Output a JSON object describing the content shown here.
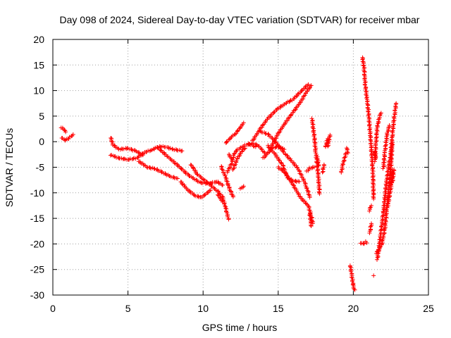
{
  "chart_data": {
    "type": "scatter",
    "title": "Day 098 of 2024, Sidereal Day-to-day VTEC variation (SDTVAR) for receiver mbar",
    "xlabel": "GPS time / hours",
    "ylabel": "SDTVAR / TECUs",
    "xlim": [
      0,
      25
    ],
    "ylim": [
      -30,
      20
    ],
    "xticks": [
      0,
      5,
      10,
      15,
      20,
      25
    ],
    "yticks": [
      -30,
      -25,
      -20,
      -15,
      -10,
      -5,
      0,
      5,
      10,
      15,
      20
    ],
    "xtick_labels": [
      "0",
      "5",
      "10",
      "15",
      "20",
      "25"
    ],
    "ytick_labels": [
      "-30",
      "-25",
      "-20",
      "-15",
      "-10",
      "-5",
      "0",
      "5",
      "10",
      "15",
      "20"
    ],
    "grid": true,
    "marker": "plus",
    "color": "#ff0000",
    "series": [
      {
        "points": [
          [
            0.55,
            2.8
          ],
          [
            0.7,
            2.5
          ],
          [
            0.85,
            1.9
          ]
        ]
      },
      {
        "points": [
          [
            0.6,
            0.8
          ],
          [
            0.8,
            0.3
          ],
          [
            1.0,
            0.5
          ],
          [
            1.2,
            1.0
          ],
          [
            1.35,
            1.4
          ]
        ]
      },
      {
        "points": [
          [
            3.85,
            0.8
          ],
          [
            4.0,
            -0.6
          ],
          [
            4.4,
            -1.5
          ],
          [
            5.0,
            -1.3
          ],
          [
            5.5,
            -1.8
          ],
          [
            6.0,
            -2.6
          ]
        ]
      },
      {
        "points": [
          [
            3.85,
            -2.6
          ],
          [
            4.4,
            -3.2
          ],
          [
            5.0,
            -3.5
          ],
          [
            5.6,
            -3.2
          ],
          [
            6.1,
            -2.1
          ],
          [
            6.6,
            -1.6
          ],
          [
            7.0,
            -1.0
          ],
          [
            7.5,
            -1.0
          ],
          [
            8.0,
            -1.5
          ],
          [
            8.6,
            -1.8
          ]
        ]
      },
      {
        "points": [
          [
            5.7,
            -3.8
          ],
          [
            6.3,
            -5.0
          ],
          [
            6.8,
            -5.3
          ],
          [
            7.3,
            -6.0
          ],
          [
            7.8,
            -6.8
          ],
          [
            8.3,
            -7.2
          ]
        ]
      },
      {
        "points": [
          [
            7.0,
            -1.2
          ],
          [
            7.6,
            -2.8
          ],
          [
            8.3,
            -4.6
          ],
          [
            9.0,
            -6.5
          ],
          [
            9.8,
            -8.0
          ],
          [
            10.4,
            -8.2
          ],
          [
            10.9,
            -7.8
          ],
          [
            11.3,
            -8.5
          ]
        ]
      },
      {
        "points": [
          [
            8.5,
            -7.8
          ],
          [
            9.0,
            -9.5
          ],
          [
            9.5,
            -10.6
          ],
          [
            9.9,
            -10.9
          ],
          [
            10.5,
            -9.5
          ]
        ]
      },
      {
        "points": [
          [
            9.2,
            -4.5
          ],
          [
            9.6,
            -6.3
          ],
          [
            10.0,
            -7.3
          ],
          [
            10.5,
            -8.5
          ],
          [
            11.0,
            -9.8
          ],
          [
            11.3,
            -10.8
          ],
          [
            11.5,
            -13.0
          ],
          [
            11.7,
            -15.2
          ]
        ]
      },
      {
        "points": [
          [
            11.2,
            -4.8
          ],
          [
            11.5,
            -7.0
          ],
          [
            11.8,
            -9.5
          ],
          [
            12.0,
            -10.8
          ]
        ]
      },
      {
        "points": [
          [
            11.0,
            -10.4
          ],
          [
            11.3,
            -11.8
          ]
        ]
      },
      {
        "points": [
          [
            11.6,
            -6.0
          ],
          [
            11.9,
            -4.2
          ],
          [
            12.1,
            -2.2
          ],
          [
            12.3,
            -1.5
          ],
          [
            12.7,
            -0.9
          ]
        ]
      },
      {
        "points": [
          [
            12.0,
            -5.5
          ],
          [
            12.3,
            -3.2
          ],
          [
            12.6,
            -1.8
          ],
          [
            12.8,
            -1.3
          ]
        ]
      },
      {
        "points": [
          [
            11.7,
            -2.5
          ],
          [
            11.9,
            -3.3
          ]
        ]
      },
      {
        "points": [
          [
            12.5,
            -9.2
          ],
          [
            12.7,
            -8.7
          ]
        ]
      },
      {
        "points": [
          [
            11.5,
            -0.3
          ],
          [
            11.8,
            0.7
          ],
          [
            12.2,
            1.7
          ],
          [
            12.5,
            2.9
          ],
          [
            12.7,
            3.7
          ]
        ]
      },
      {
        "points": [
          [
            12.8,
            -0.7
          ],
          [
            13.3,
            -0.3
          ],
          [
            13.7,
            -0.8
          ],
          [
            14.1,
            -2.2
          ]
        ]
      },
      {
        "points": [
          [
            13.0,
            -0.4
          ],
          [
            13.5,
            -1.0
          ]
        ]
      },
      {
        "points": [
          [
            13.3,
            0.2
          ],
          [
            13.8,
            2.5
          ],
          [
            14.3,
            4.5
          ],
          [
            14.9,
            6.3
          ],
          [
            15.5,
            7.5
          ],
          [
            16.0,
            8.3
          ],
          [
            16.5,
            9.8
          ],
          [
            17.0,
            11.2
          ]
        ]
      },
      {
        "points": [
          [
            13.8,
            2.0
          ],
          [
            14.3,
            1.5
          ],
          [
            14.7,
            0.4
          ],
          [
            15.0,
            -0.7
          ],
          [
            15.5,
            -2.5
          ],
          [
            15.9,
            -3.8
          ],
          [
            16.3,
            -5.2
          ],
          [
            16.7,
            -7.5
          ],
          [
            16.9,
            -9.0
          ],
          [
            17.1,
            -10.9
          ]
        ]
      },
      {
        "points": [
          [
            14.0,
            -3.2
          ],
          [
            14.3,
            -2.3
          ],
          [
            14.6,
            -1.2
          ],
          [
            15.0,
            -1.0
          ],
          [
            15.4,
            -1.5
          ]
        ]
      },
      {
        "points": [
          [
            14.3,
            -0.8
          ],
          [
            14.8,
            -2.5
          ],
          [
            15.3,
            -4.6
          ],
          [
            15.6,
            -7.0
          ],
          [
            16.0,
            -7.7
          ],
          [
            16.4,
            -7.8
          ]
        ]
      },
      {
        "points": [
          [
            14.5,
            -1.2
          ],
          [
            15.0,
            1.6
          ],
          [
            15.5,
            3.8
          ],
          [
            16.0,
            5.8
          ],
          [
            16.5,
            7.8
          ],
          [
            16.9,
            9.8
          ],
          [
            17.2,
            11.0
          ]
        ]
      },
      {
        "points": [
          [
            15.0,
            -5.0
          ],
          [
            15.5,
            -6.2
          ],
          [
            16.0,
            -8.5
          ],
          [
            16.5,
            -11.0
          ],
          [
            17.0,
            -12.5
          ],
          [
            17.2,
            -14.5
          ],
          [
            17.3,
            -16.0
          ]
        ]
      },
      {
        "points": [
          [
            16.9,
            -5.8
          ],
          [
            17.1,
            -5.2
          ],
          [
            17.4,
            -5.0
          ]
        ]
      },
      {
        "points": [
          [
            17.1,
            -14.0
          ],
          [
            17.2,
            -16.5
          ]
        ]
      },
      {
        "points": [
          [
            17.25,
            4.5
          ],
          [
            17.4,
            1.0
          ],
          [
            17.5,
            -2.0
          ],
          [
            17.6,
            -4.8
          ],
          [
            17.7,
            -7.8
          ],
          [
            17.75,
            -10.2
          ]
        ]
      },
      {
        "points": [
          [
            17.6,
            -3.0
          ],
          [
            17.7,
            -4.7
          ]
        ]
      },
      {
        "points": [
          [
            17.95,
            -6.0
          ],
          [
            18.05,
            -4.5
          ]
        ]
      },
      {
        "points": [
          [
            18.15,
            -1.0
          ],
          [
            18.3,
            0.6
          ]
        ]
      },
      {
        "points": [
          [
            18.3,
            -0.9
          ],
          [
            18.45,
            1.3
          ]
        ]
      },
      {
        "points": [
          [
            19.2,
            -6.0
          ],
          [
            19.3,
            -4.5
          ],
          [
            19.5,
            -2.3
          ]
        ]
      },
      {
        "points": [
          [
            19.55,
            -1.2
          ],
          [
            19.65,
            -2.2
          ]
        ]
      },
      {
        "points": [
          [
            19.8,
            -24.2
          ],
          [
            19.9,
            -26.2
          ],
          [
            20.0,
            -28.3
          ],
          [
            20.1,
            -29.0
          ]
        ]
      },
      {
        "points": [
          [
            20.6,
            16.5
          ],
          [
            20.7,
            14.8
          ],
          [
            20.8,
            11.0
          ],
          [
            20.9,
            8.5
          ],
          [
            21.0,
            6.0
          ],
          [
            21.1,
            2.5
          ],
          [
            21.2,
            -1.5
          ],
          [
            21.3,
            -5.8
          ],
          [
            21.35,
            -11.2
          ]
        ]
      },
      {
        "points": [
          [
            20.5,
            -19.8
          ],
          [
            20.7,
            -20.0
          ],
          [
            20.8,
            -19.6
          ],
          [
            20.9,
            -19.8
          ]
        ]
      },
      {
        "points": [
          [
            21.05,
            -13.5
          ],
          [
            21.2,
            -12.5
          ]
        ]
      },
      {
        "points": [
          [
            21.1,
            -17.8
          ],
          [
            21.2,
            -16.0
          ]
        ]
      },
      {
        "points": [
          [
            21.35,
            -26.2
          ]
        ]
      },
      {
        "points": [
          [
            21.45,
            -3.8
          ],
          [
            21.5,
            -0.5
          ],
          [
            21.6,
            3.0
          ],
          [
            21.75,
            5.0
          ],
          [
            21.85,
            5.6
          ]
        ]
      },
      {
        "points": [
          [
            21.4,
            -2.0
          ],
          [
            21.5,
            -3.0
          ]
        ]
      },
      {
        "points": [
          [
            21.6,
            -23.0
          ],
          [
            21.8,
            -18.5
          ],
          [
            22.0,
            -13.8
          ],
          [
            22.2,
            -8.0
          ],
          [
            22.4,
            -3.8
          ]
        ]
      },
      {
        "points": [
          [
            21.5,
            -21.8
          ],
          [
            21.7,
            -21.2
          ],
          [
            21.9,
            -20.0
          ],
          [
            22.1,
            -17.0
          ],
          [
            22.3,
            -11.0
          ],
          [
            22.5,
            -5.0
          ],
          [
            22.6,
            -0.2
          ]
        ]
      },
      {
        "points": [
          [
            22.0,
            -5.2
          ],
          [
            22.1,
            -2.0
          ],
          [
            22.25,
            1.5
          ],
          [
            22.4,
            3.2
          ]
        ]
      },
      {
        "points": [
          [
            22.3,
            -12.5
          ],
          [
            22.5,
            -9.0
          ],
          [
            22.6,
            -5.5
          ]
        ]
      },
      {
        "points": [
          [
            22.6,
            -8.0
          ],
          [
            22.7,
            -5.5
          ]
        ]
      },
      {
        "points": [
          [
            22.45,
            -3.5
          ],
          [
            22.6,
            1.5
          ],
          [
            22.75,
            5.5
          ],
          [
            22.85,
            7.5
          ]
        ]
      }
    ]
  }
}
